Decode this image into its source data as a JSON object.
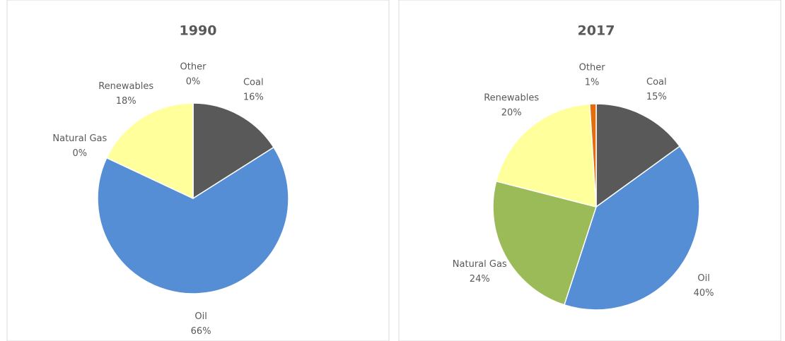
{
  "chart_data": [
    {
      "type": "pie",
      "title": "1990",
      "categories": [
        "Coal",
        "Oil",
        "Natural Gas",
        "Renewables",
        "Other"
      ],
      "values": [
        16,
        66,
        0,
        18,
        0
      ],
      "value_labels": [
        "16%",
        "66%",
        "0%",
        "18%",
        "0%"
      ],
      "colors": [
        "#595959",
        "#558ed5",
        "#9bbb59",
        "#ffff9c",
        "#e46c0a"
      ]
    },
    {
      "type": "pie",
      "title": "2017",
      "categories": [
        "Coal",
        "Oil",
        "Natural Gas",
        "Renewables",
        "Other"
      ],
      "values": [
        15,
        40,
        24,
        20,
        1
      ],
      "value_labels": [
        "15%",
        "40%",
        "24%",
        "20%",
        "1%"
      ],
      "colors": [
        "#595959",
        "#558ed5",
        "#9bbb59",
        "#ffff9c",
        "#e46c0a"
      ]
    }
  ]
}
